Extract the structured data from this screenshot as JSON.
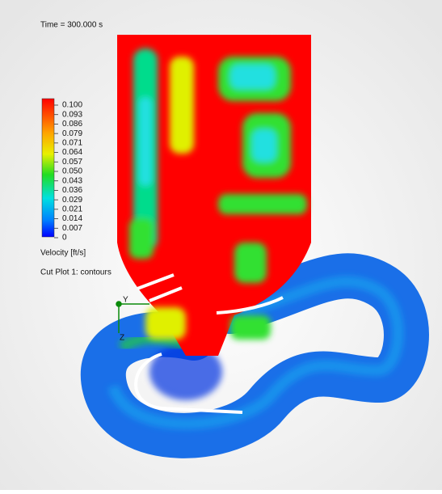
{
  "header": {
    "time": "Time = 300.000 s"
  },
  "legend": {
    "ticks": [
      "0.100",
      "0.093",
      "0.086",
      "0.079",
      "0.071",
      "0.064",
      "0.057",
      "0.050",
      "0.043",
      "0.036",
      "0.029",
      "0.021",
      "0.014",
      "0.007",
      "0"
    ],
    "title": "Velocity [ft/s]"
  },
  "plot": {
    "label": "Cut Plot 1: contours"
  },
  "triad": {
    "y": "Y",
    "z": "Z"
  }
}
